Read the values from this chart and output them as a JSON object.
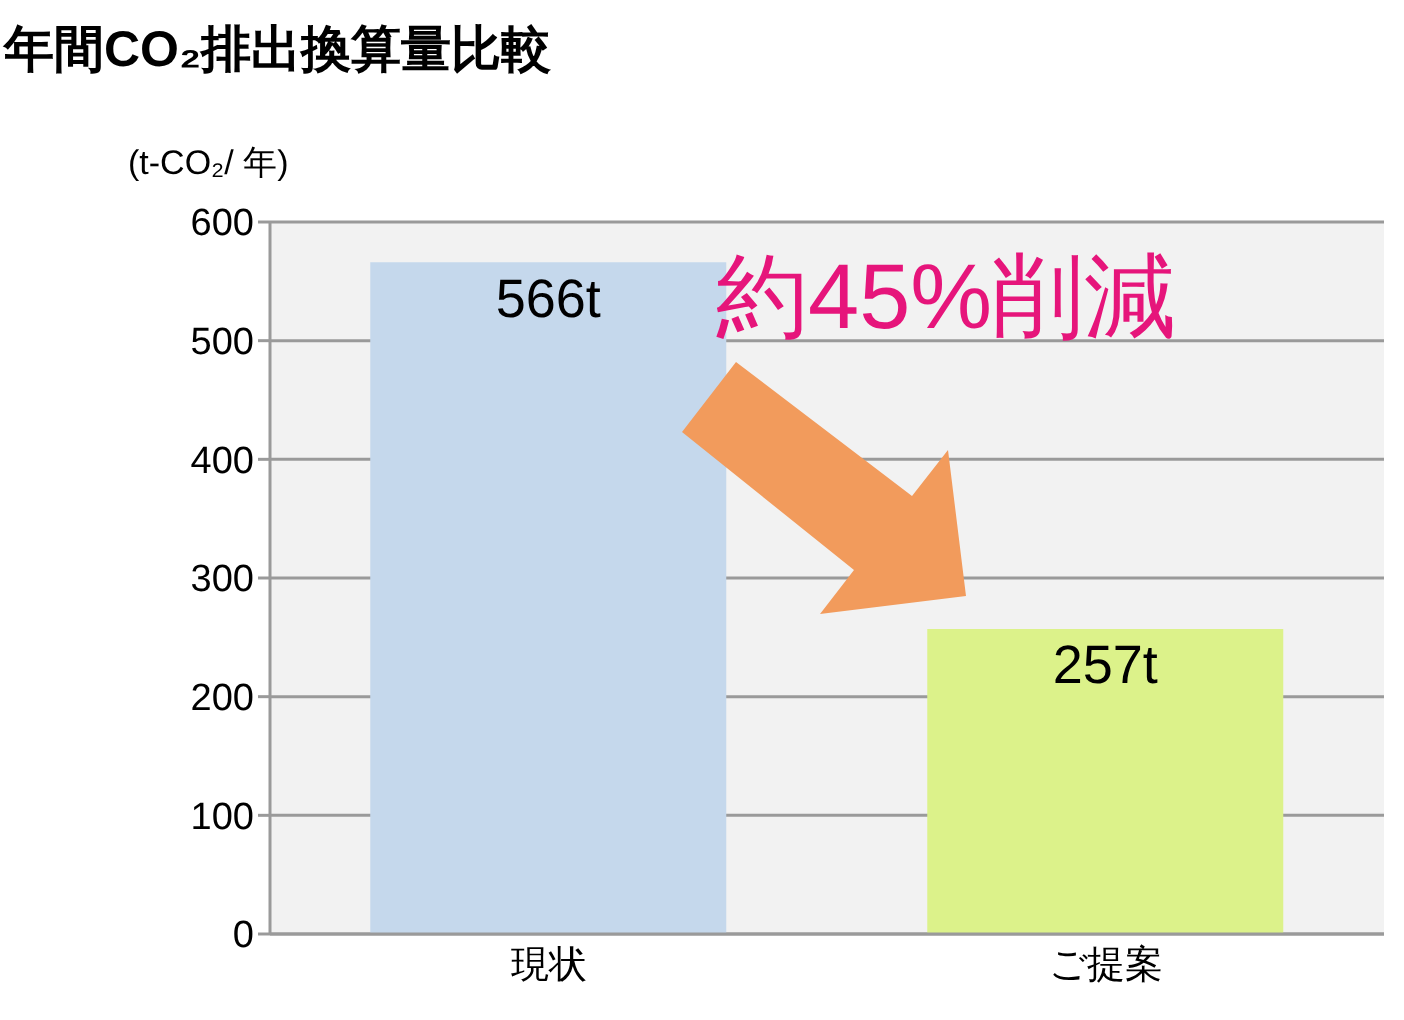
{
  "chart_data": {
    "type": "bar",
    "title": "年間CO₂排出換算量比較",
    "ylabel": "(t-CO₂/ 年)",
    "categories": [
      "現状",
      "ご提案"
    ],
    "values": [
      566,
      257
    ],
    "colors": [
      "#c5d8ec",
      "#dcf28a"
    ],
    "value_labels": [
      "566t",
      "257t"
    ],
    "ylim": [
      0,
      600
    ],
    "yticks": [
      0,
      100,
      200,
      300,
      400,
      500,
      600
    ],
    "grid": "y",
    "annotations": [
      "約45%削減"
    ]
  }
}
